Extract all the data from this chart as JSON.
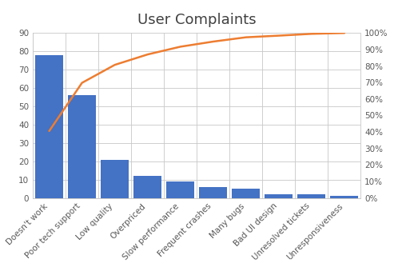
{
  "title": "User Complaints",
  "categories": [
    "Doesn't work",
    "Poor tech support",
    "Low quality",
    "Overpriced",
    "Slow performance",
    "Frequent crashes",
    "Many bugs",
    "Bad UI design",
    "Unresolved tickets",
    "Unresponsiveness"
  ],
  "bar_values": [
    78,
    56,
    21,
    12,
    9,
    6,
    5,
    2,
    2,
    1
  ],
  "cumulative_pct": [
    40.6,
    69.8,
    80.7,
    87.0,
    91.7,
    94.8,
    97.4,
    98.4,
    99.5,
    100.0
  ],
  "bar_color": "#4472C4",
  "line_color": "#ED7D31",
  "background_color": "#FFFFFF",
  "left_ylim": [
    0,
    90
  ],
  "left_yticks": [
    0,
    10,
    20,
    30,
    40,
    50,
    60,
    70,
    80,
    90
  ],
  "right_ylim": [
    0,
    100
  ],
  "right_yticks": [
    0,
    10,
    20,
    30,
    40,
    50,
    60,
    70,
    80,
    90,
    100
  ],
  "right_yticklabels": [
    "0%",
    "10%",
    "20%",
    "30%",
    "40%",
    "50%",
    "60%",
    "70%",
    "80%",
    "90%",
    "100%"
  ],
  "title_fontsize": 13,
  "tick_fontsize": 7.5,
  "tick_color": "#595959",
  "title_color": "#404040",
  "grid_color": "#C8C8C8",
  "spine_color": "#C8C8C8",
  "figsize": [
    5.13,
    3.44
  ],
  "dpi": 100
}
